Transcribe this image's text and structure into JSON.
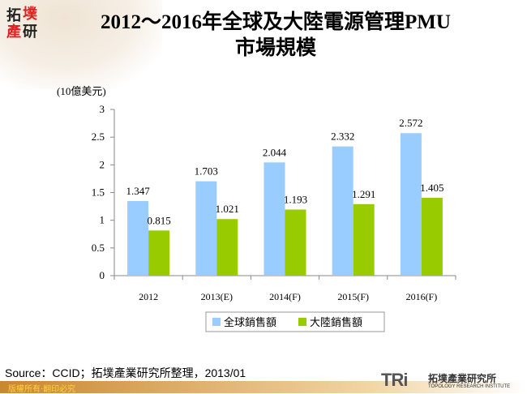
{
  "logo": {
    "chars": [
      "拓",
      "墣",
      "產",
      "研"
    ]
  },
  "title_line1": "2012～2016年全球及大陸電源管理PMU",
  "title_line2": "市場規模",
  "chart_data": {
    "type": "bar",
    "ylabel": "(10億美元)",
    "categories": [
      "2012",
      "2013(E)",
      "2014(F)",
      "2015(F)",
      "2016(F)"
    ],
    "ylim": [
      0,
      3
    ],
    "yticks": [
      "0",
      "0.5",
      "1",
      "1.5",
      "2",
      "2.5",
      "3"
    ],
    "grid": false,
    "legend_position": "bottom",
    "series": [
      {
        "name": "全球銷售額",
        "color": "#99ccff",
        "values": [
          1.347,
          1.703,
          2.044,
          2.332,
          2.572
        ],
        "labels": [
          "1.347",
          "1.703",
          "2.044",
          "2.332",
          "2.572"
        ]
      },
      {
        "name": "大陸銷售額",
        "color": "#99cc00",
        "values": [
          0.815,
          1.021,
          1.193,
          1.291,
          1.405
        ],
        "labels": [
          "0.815",
          "1.021",
          "1.193",
          "1.291",
          "1.405"
        ]
      }
    ]
  },
  "source": "Source：CCID；拓墣產業研究所整理，2013/01",
  "copyright": "版權所有‧翻印必究",
  "tri": {
    "mark": "TRi",
    "cn": "拓墣產業研究所",
    "en": "TOPOLOGY RESEARCH INSTITUTE"
  }
}
